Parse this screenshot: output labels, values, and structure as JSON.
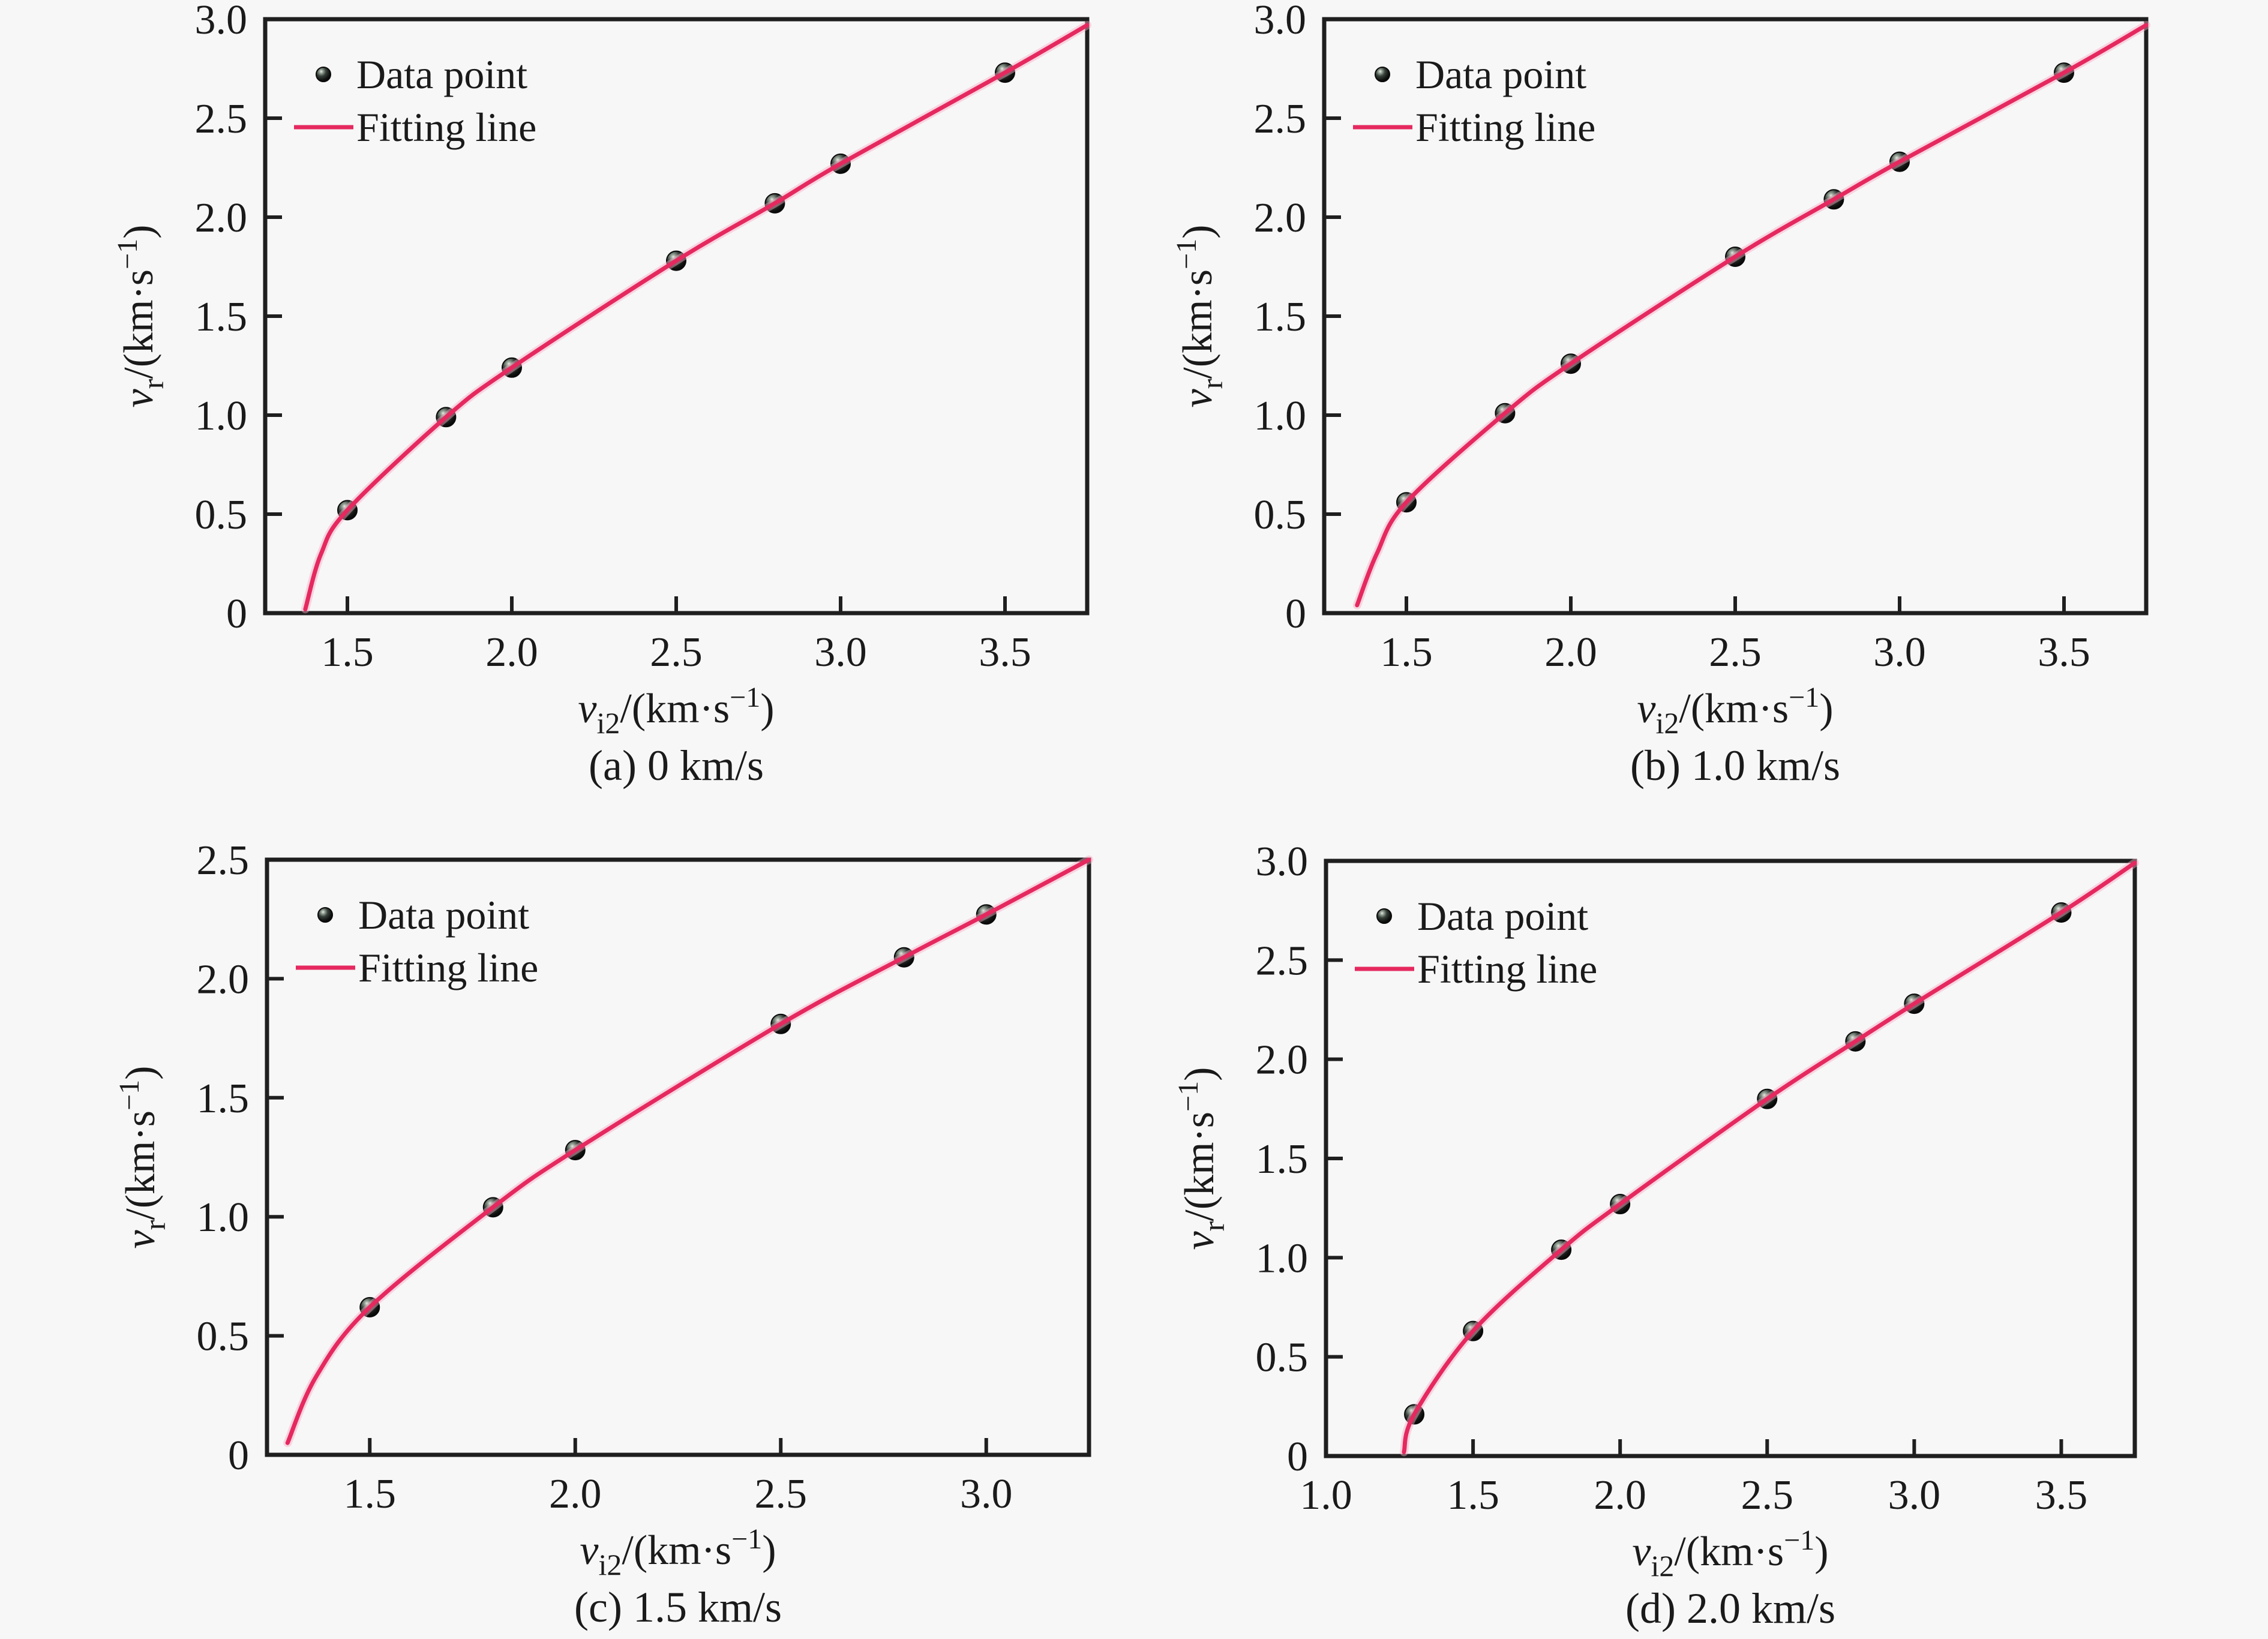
{
  "figure": {
    "background": "#f7f7f7",
    "text_color": "#1a1a1a",
    "axis_color": "#1f1f1f",
    "fit_line_color": "#e5295f",
    "fit_line_glow": "#f9a8c3",
    "legend": {
      "point_label": "Data point",
      "line_label": "Fitting line"
    },
    "ylabel": {
      "var": "v",
      "sub": "r",
      "mid": "/(km·s",
      "sup": "−1",
      "end": ")"
    },
    "xlabel": {
      "var": "v",
      "sub": "i2",
      "mid": "/(km·s",
      "sup": "−1",
      "end": ")"
    }
  },
  "chart_data": [
    {
      "id": "a",
      "type": "scatter",
      "caption": "(a) 0 km/s",
      "xlabel": "v_i2/(km·s^-1)",
      "ylabel": "v_r/(km·s^-1)",
      "xlim": [
        1.25,
        3.75
      ],
      "ylim": [
        0,
        3.0
      ],
      "xticks": [
        1.5,
        2.0,
        2.5,
        3.0,
        3.5
      ],
      "yticks": [
        0,
        0.5,
        1.0,
        1.5,
        2.0,
        2.5,
        3.0
      ],
      "grid": false,
      "legend_position": "upper-left",
      "series": [
        {
          "name": "Data point",
          "kind": "scatter",
          "x": [
            1.5,
            1.8,
            2.0,
            2.5,
            2.8,
            3.0,
            3.5
          ],
          "y": [
            0.52,
            0.99,
            1.24,
            1.78,
            2.07,
            2.27,
            2.73
          ]
        },
        {
          "name": "Fitting line",
          "kind": "line",
          "anchors": [
            [
              1.372,
              0.02
            ],
            [
              1.42,
              0.3
            ],
            [
              1.5,
              0.52
            ],
            [
              1.8,
              0.99
            ],
            [
              2.0,
              1.24
            ],
            [
              2.5,
              1.78
            ],
            [
              2.8,
              2.07
            ],
            [
              3.0,
              2.27
            ],
            [
              3.5,
              2.73
            ],
            [
              3.75,
              2.97
            ]
          ]
        }
      ]
    },
    {
      "id": "b",
      "type": "scatter",
      "caption": "(b) 1.0 km/s",
      "xlabel": "v_i2/(km·s^-1)",
      "ylabel": "v_r/(km·s^-1)",
      "xlim": [
        1.25,
        3.75
      ],
      "ylim": [
        0,
        3.0
      ],
      "xticks": [
        1.5,
        2.0,
        2.5,
        3.0,
        3.5
      ],
      "yticks": [
        0,
        0.5,
        1.0,
        1.5,
        2.0,
        2.5,
        3.0
      ],
      "grid": false,
      "legend_position": "upper-left",
      "series": [
        {
          "name": "Data point",
          "kind": "scatter",
          "x": [
            1.5,
            1.8,
            2.0,
            2.5,
            2.8,
            3.0,
            3.5
          ],
          "y": [
            0.56,
            1.01,
            1.26,
            1.8,
            2.09,
            2.28,
            2.73
          ]
        },
        {
          "name": "Fitting line",
          "kind": "line",
          "anchors": [
            [
              1.35,
              0.04
            ],
            [
              1.41,
              0.3
            ],
            [
              1.5,
              0.56
            ],
            [
              1.8,
              1.01
            ],
            [
              2.0,
              1.26
            ],
            [
              2.5,
              1.8
            ],
            [
              2.8,
              2.09
            ],
            [
              3.0,
              2.28
            ],
            [
              3.5,
              2.73
            ],
            [
              3.75,
              2.97
            ]
          ]
        }
      ]
    },
    {
      "id": "c",
      "type": "scatter",
      "caption": "(c) 1.5 km/s",
      "xlabel": "v_i2/(km·s^-1)",
      "ylabel": "v_r/(km·s^-1)",
      "xlim": [
        1.25,
        3.25
      ],
      "ylim": [
        0,
        2.5
      ],
      "xticks": [
        1.5,
        2.0,
        2.5,
        3.0
      ],
      "yticks": [
        0,
        0.5,
        1.0,
        1.5,
        2.0,
        2.5
      ],
      "grid": false,
      "legend_position": "upper-left",
      "series": [
        {
          "name": "Data point",
          "kind": "scatter",
          "x": [
            1.5,
            1.8,
            2.0,
            2.5,
            2.8,
            3.0
          ],
          "y": [
            0.62,
            1.04,
            1.28,
            1.81,
            2.09,
            2.27
          ]
        },
        {
          "name": "Fitting line",
          "kind": "line",
          "anchors": [
            [
              1.3,
              0.05
            ],
            [
              1.37,
              0.33
            ],
            [
              1.5,
              0.62
            ],
            [
              1.8,
              1.04
            ],
            [
              2.0,
              1.28
            ],
            [
              2.5,
              1.81
            ],
            [
              2.8,
              2.09
            ],
            [
              3.0,
              2.27
            ],
            [
              3.25,
              2.5
            ]
          ]
        }
      ]
    },
    {
      "id": "d",
      "type": "scatter",
      "caption": "(d) 2.0 km/s",
      "xlabel": "v_i2/(km·s^-1)",
      "ylabel": "v_r/(km·s^-1)",
      "xlim": [
        1.0,
        3.75
      ],
      "ylim": [
        0,
        3.0
      ],
      "xticks": [
        1.0,
        1.5,
        2.0,
        2.5,
        3.0,
        3.5
      ],
      "yticks": [
        0,
        0.5,
        1.0,
        1.5,
        2.0,
        2.5,
        3.0
      ],
      "grid": false,
      "legend_position": "upper-left",
      "series": [
        {
          "name": "Data point",
          "kind": "scatter",
          "x": [
            1.3,
            1.5,
            1.8,
            2.0,
            2.5,
            2.8,
            3.0,
            3.5
          ],
          "y": [
            0.21,
            0.63,
            1.04,
            1.27,
            1.8,
            2.09,
            2.28,
            2.74
          ]
        },
        {
          "name": "Fitting line",
          "kind": "line",
          "anchors": [
            [
              1.265,
              0.02
            ],
            [
              1.3,
              0.21
            ],
            [
              1.5,
              0.63
            ],
            [
              1.8,
              1.04
            ],
            [
              2.0,
              1.27
            ],
            [
              2.5,
              1.8
            ],
            [
              2.8,
              2.09
            ],
            [
              3.0,
              2.28
            ],
            [
              3.5,
              2.74
            ],
            [
              3.75,
              2.99
            ]
          ]
        }
      ]
    }
  ]
}
